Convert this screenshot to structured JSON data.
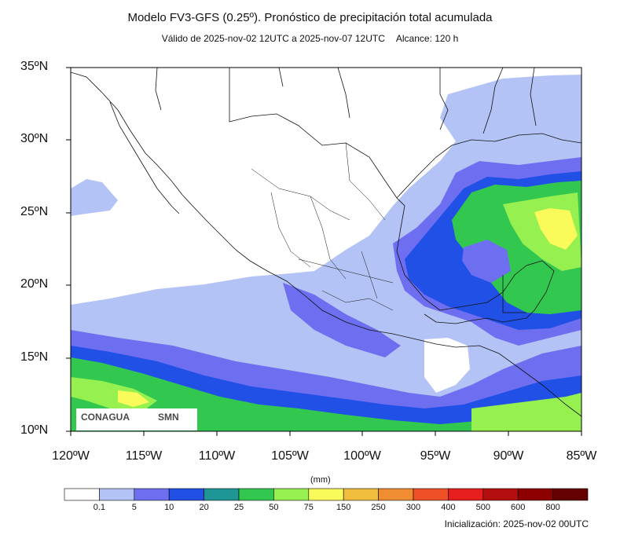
{
  "header": {
    "title": "Modelo FV3-GFS (0.25º). Pronóstico de precipitación total acumulada",
    "subtitle_valid": "Válido de 2025-nov-02 12UTC a 2025-nov-07 12UTC",
    "subtitle_range": "Alcance: 120 h"
  },
  "axes": {
    "lat_labels": [
      "35ºN",
      "30ºN",
      "25ºN",
      "20ºN",
      "15ºN",
      "10ºN"
    ],
    "lon_labels": [
      "120ºW",
      "115ºW",
      "110ºW",
      "105ºW",
      "100ºW",
      "95ºW",
      "90ºW",
      "85ºW"
    ]
  },
  "colorbar": {
    "units": "(mm)",
    "labels": [
      "0.1",
      "5",
      "10",
      "20",
      "25",
      "50",
      "75",
      "150",
      "250",
      "300",
      "400",
      "500",
      "600",
      "800"
    ],
    "colors": [
      "#ffffff",
      "#b4c3f5",
      "#6e6ef0",
      "#2050e6",
      "#1e9696",
      "#32c850",
      "#96f050",
      "#fafa5a",
      "#f0be3c",
      "#f08c32",
      "#f05028",
      "#e61e1e",
      "#b40f0f",
      "#8c0000",
      "#640000"
    ]
  },
  "footer": {
    "init": "Inicialización: 2025-nov-02 00UTC"
  },
  "logos": {
    "left": "CONAGUA",
    "right": "SMN"
  }
}
